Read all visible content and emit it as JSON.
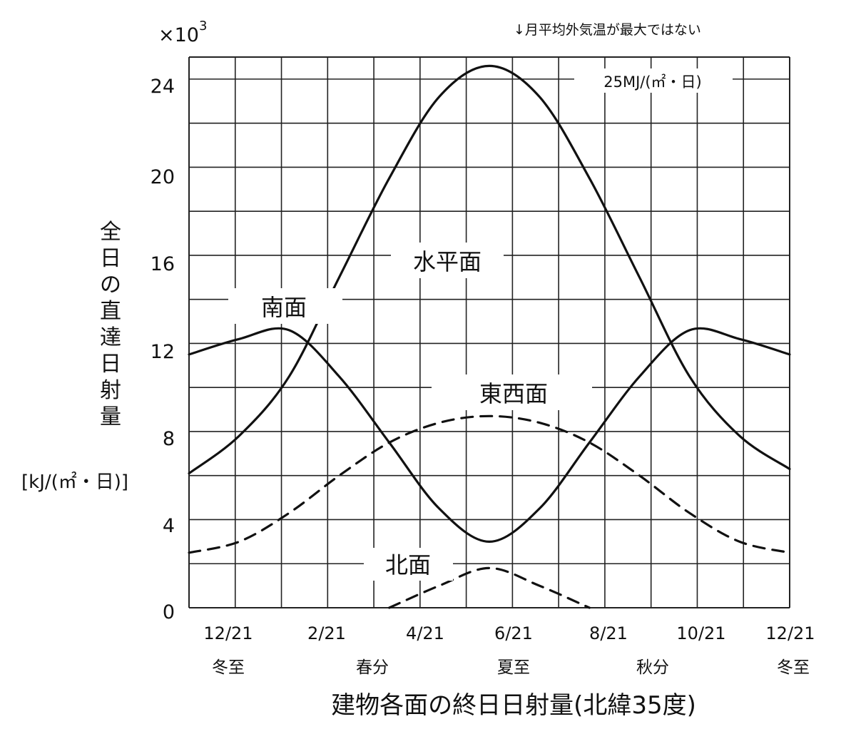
{
  "chart_data": {
    "type": "line",
    "title": "建物各面の終日日射量(北緯35度)",
    "ylabel": "全日の直達日射量",
    "yunit": "[kJ/(㎡・日)]",
    "y_multiplier": "×10",
    "y_multiplier_exp": "3",
    "ylim": [
      0,
      25
    ],
    "yticks": [
      "0",
      "4",
      "8",
      "12",
      "16",
      "20",
      "24"
    ],
    "xticks": [
      "12/21",
      "2/21",
      "4/21",
      "6/21",
      "8/21",
      "10/21",
      "12/21"
    ],
    "season_labels": [
      "冬至",
      "春分",
      "夏至",
      "秋分",
      "冬至"
    ],
    "grid": true,
    "annotation_top": "↓月平均外気温が最大ではない",
    "peak_label": "25MJ/(㎡・日)",
    "x_months_from_dec21": [
      0,
      1,
      2,
      3,
      4,
      5,
      6,
      7,
      8,
      9,
      10,
      11,
      12
    ],
    "series": [
      {
        "name": "水平面",
        "style": "solid",
        "values": [
          6.1,
          7.8,
          10.5,
          15.0,
          19.5,
          23.2,
          24.6,
          23.2,
          19.5,
          15.0,
          10.5,
          7.8,
          6.3
        ]
      },
      {
        "name": "南面",
        "style": "solid",
        "values": [
          11.5,
          12.2,
          12.6,
          10.5,
          7.5,
          4.5,
          3.0,
          4.5,
          7.5,
          10.5,
          12.6,
          12.2,
          11.5
        ]
      },
      {
        "name": "東西面",
        "style": "dashed",
        "values": [
          2.5,
          3.0,
          4.3,
          6.0,
          7.5,
          8.4,
          8.7,
          8.4,
          7.5,
          6.0,
          4.3,
          3.0,
          2.5
        ]
      },
      {
        "name": "北面",
        "style": "dashed",
        "values": [
          null,
          null,
          null,
          null,
          0.0,
          1.0,
          1.8,
          1.0,
          0.0,
          null,
          null,
          null,
          null
        ]
      }
    ]
  }
}
